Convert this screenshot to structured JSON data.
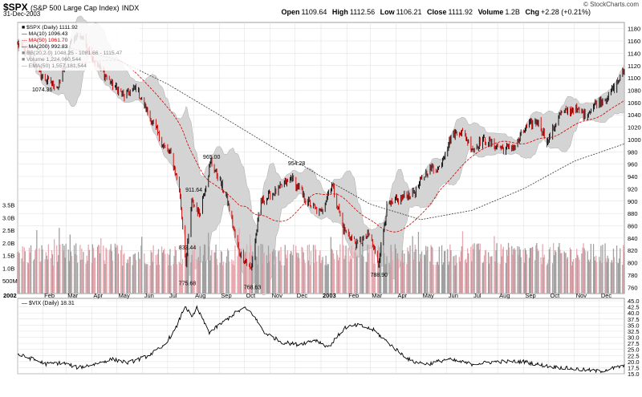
{
  "header": {
    "symbol": "$SPX",
    "name": "(S&P 500 Large Cap Index)",
    "exchange": "INDX",
    "date": "31-Dec-2003",
    "credit": "© StockCharts.com",
    "quote": {
      "open_label": "Open",
      "open": "1109.64",
      "high_label": "High",
      "high": "1112.56",
      "low_label": "Low",
      "low": "1106.21",
      "close_label": "Close",
      "close": "1111.92",
      "volume_label": "Volume",
      "volume": "1.2B",
      "chg_label": "Chg",
      "chg": "+2.28 (+0.21%)"
    }
  },
  "legend": [
    {
      "text": "■ $SPX (Daily) 1111.92",
      "color": "#000000"
    },
    {
      "text": "— MA(10) 1096.43",
      "color": "#000000"
    },
    {
      "text": "--- MA(50) 1061.70",
      "color": "#cc0000"
    },
    {
      "text": "— MA(200) 992.83",
      "color": "#000000"
    },
    {
      "text": "■ BB(20,2.0) 1048.25 - 1081.66 - 1115.47",
      "color": "#888888"
    },
    {
      "text": "■ Volume 1,224,060,544",
      "color": "#888888"
    },
    {
      "text": "— EMA(50) 1,557,181,544",
      "color": "#888888"
    }
  ],
  "vix_legend": "— $VIX (Daily) 18.31",
  "colors": {
    "price_up": "#000000",
    "price_down": "#cc0000",
    "bb_fill": "#d4d4d4",
    "volume_up": "#a0a0a0",
    "volume_down": "#e8a8b0",
    "ma200": "#333333",
    "ma50": "#cc0000",
    "vix": "#000000",
    "grid": "#dddddd"
  },
  "chart_data": [
    {
      "type": "line",
      "title": "$SPX (S&P 500 Large Cap Index) Daily",
      "x": [
        "2002-01-02",
        "2002-01-15",
        "2002-02-01",
        "2002-02-20",
        "2002-03-08",
        "2002-03-19",
        "2002-04-05",
        "2002-04-25",
        "2002-05-10",
        "2002-05-24",
        "2002-06-10",
        "2002-06-26",
        "2002-07-05",
        "2002-07-15",
        "2002-07-23",
        "2002-07-30",
        "2002-08-08",
        "2002-08-22",
        "2002-09-10",
        "2002-09-24",
        "2002-10-09",
        "2002-10-21",
        "2002-11-08",
        "2002-11-27",
        "2002-12-12",
        "2002-12-31",
        "2003-01-14",
        "2003-01-28",
        "2003-02-13",
        "2003-02-28",
        "2003-03-11",
        "2003-03-21",
        "2003-04-07",
        "2003-04-24",
        "2003-05-09",
        "2003-05-23",
        "2003-06-06",
        "2003-06-17",
        "2003-07-03",
        "2003-07-14",
        "2003-07-31",
        "2003-08-11",
        "2003-08-22",
        "2003-09-05",
        "2003-09-18",
        "2003-09-30",
        "2003-10-14",
        "2003-10-31",
        "2003-11-14",
        "2003-11-28",
        "2003-12-12",
        "2003-12-31"
      ],
      "y": [
        1154,
        1138,
        1100,
        1085,
        1164,
        1170,
        1125,
        1090,
        1070,
        1085,
        1035,
        990,
        975,
        920,
        800,
        900,
        880,
        965,
        905,
        820,
        790,
        900,
        915,
        938,
        905,
        880,
        930,
        855,
        830,
        845,
        800,
        890,
        905,
        915,
        950,
        955,
        1005,
        1015,
        985,
        1000,
        990,
        985,
        990,
        1020,
        1030,
        995,
        1040,
        1050,
        1040,
        1060,
        1070,
        1112
      ],
      "annotations": [
        {
          "label": "1074.36",
          "x": "2002-01-29",
          "y": 1074.36
        },
        {
          "label": "911.64",
          "x": "2002-08-01",
          "y": 911.64
        },
        {
          "label": "965.00",
          "x": "2002-08-22",
          "y": 965.0
        },
        {
          "label": "833.44",
          "x": "2002-07-24",
          "y": 833.44
        },
        {
          "label": "775.68",
          "x": "2002-07-24",
          "y": 775.68
        },
        {
          "label": "768.63",
          "x": "2002-10-10",
          "y": 768.63
        },
        {
          "label": "954.28",
          "x": "2002-12-02",
          "y": 954.28
        },
        {
          "label": "788.90",
          "x": "2003-03-11",
          "y": 788.9
        }
      ],
      "ylim": [
        750,
        1190
      ],
      "ytick_labels": [
        "1180",
        "1160",
        "1140",
        "1120",
        "1100",
        "1080",
        "1060",
        "1040",
        "1020",
        "1000",
        "980",
        "960",
        "940",
        "920",
        "900",
        "880",
        "860",
        "840",
        "820",
        "800",
        "780",
        "760"
      ],
      "x_axis_labels": [
        "2002",
        "Feb",
        "Mar",
        "Apr",
        "May",
        "Jun",
        "Jul",
        "Aug",
        "Sep",
        "Oct",
        "Nov",
        "Dec",
        "2003",
        "Feb",
        "Mar",
        "Apr",
        "May",
        "Jun",
        "Jul",
        "Aug",
        "Sep",
        "Oct",
        "Nov",
        "Dec"
      ],
      "volume_tick_labels": [
        "3.5B",
        "3.0B",
        "2.5B",
        "2.0B",
        "1.5B",
        "1.0B",
        "500M"
      ],
      "ma200": {
        "x": [
          "2002-01-02",
          "2002-03-01",
          "2002-05-01",
          "2002-07-01",
          "2002-09-01",
          "2002-11-01",
          "2003-01-01",
          "2003-03-01",
          "2003-05-01",
          "2003-07-01",
          "2003-09-01",
          "2003-11-01",
          "2003-12-31"
        ],
        "y": [
          1160,
          1150,
          1130,
          1090,
          1040,
          990,
          940,
          895,
          870,
          885,
          920,
          965,
          993
        ]
      },
      "grid": true
    },
    {
      "type": "line",
      "title": "$VIX (Daily) 18.31",
      "x": [
        "2002-01-02",
        "2002-01-20",
        "2002-02-05",
        "2002-02-25",
        "2002-03-15",
        "2002-04-05",
        "2002-04-25",
        "2002-05-15",
        "2002-06-05",
        "2002-06-25",
        "2002-07-10",
        "2002-07-22",
        "2002-07-30",
        "2002-08-05",
        "2002-08-20",
        "2002-09-05",
        "2002-09-20",
        "2002-10-01",
        "2002-10-10",
        "2002-10-25",
        "2002-11-15",
        "2002-12-05",
        "2002-12-25",
        "2003-01-10",
        "2003-01-30",
        "2003-02-15",
        "2003-03-05",
        "2003-03-15",
        "2003-04-01",
        "2003-04-20",
        "2003-05-10",
        "2003-06-01",
        "2003-07-01",
        "2003-08-01",
        "2003-09-01",
        "2003-10-01",
        "2003-11-01",
        "2003-12-01",
        "2003-12-31"
      ],
      "y": [
        23,
        21,
        19,
        19.5,
        17.5,
        19,
        21,
        19.5,
        22,
        26,
        33,
        43,
        38,
        42,
        32,
        36,
        40,
        42,
        40,
        32,
        28,
        27,
        29,
        26,
        34,
        35,
        33,
        30,
        25,
        20,
        19,
        21,
        19,
        20,
        20,
        18,
        17,
        16,
        18.31
      ],
      "ylim": [
        15,
        46
      ],
      "ytick_labels": [
        "45.0",
        "42.5",
        "40.0",
        "37.5",
        "35.0",
        "32.5",
        "30.0",
        "27.5",
        "25.0",
        "22.5",
        "20.0",
        "17.5",
        "15.0"
      ],
      "grid": true
    }
  ]
}
